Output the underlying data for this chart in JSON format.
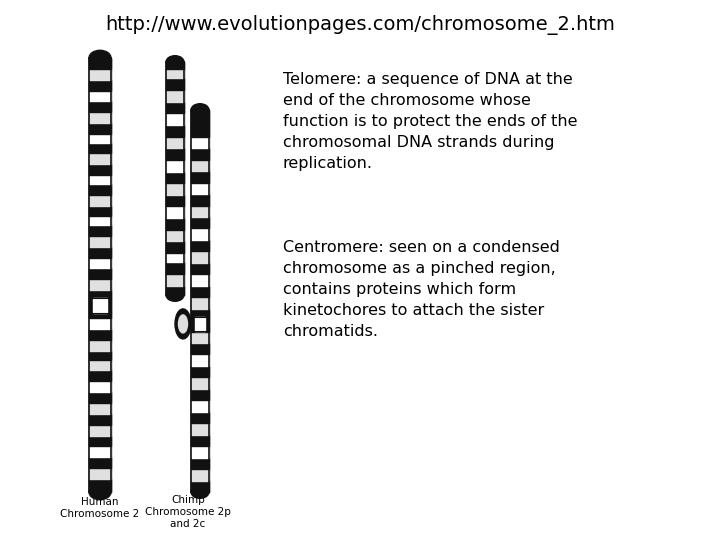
{
  "title": "http://www.evolutionpages.com/chromosome_2.htm",
  "title_fontsize": 14,
  "telomere_lines": [
    "Telomere: a sequence of DNA at the",
    "end of the chromosome whose",
    "function is to protect the ends of the",
    "chromosomal DNA strands during",
    "replication."
  ],
  "centromere_lines": [
    "Centromere: seen on a condensed",
    "chromosome as a pinched region,",
    "contains proteins which form",
    "kinetochores to attach the sister",
    "chromatids."
  ],
  "label_human": "Human\nChromosome 2",
  "label_chimp": "Chimp\nChromosome 2p\nand 2c",
  "bg_color": "#ffffff",
  "text_color": "#000000",
  "text_fontsize": 11.5,
  "label_fontsize": 7.5,
  "chr_color_dark": "#111111",
  "chr_color_light": "#e0e0e0",
  "chr_color_white": "#ffffff"
}
